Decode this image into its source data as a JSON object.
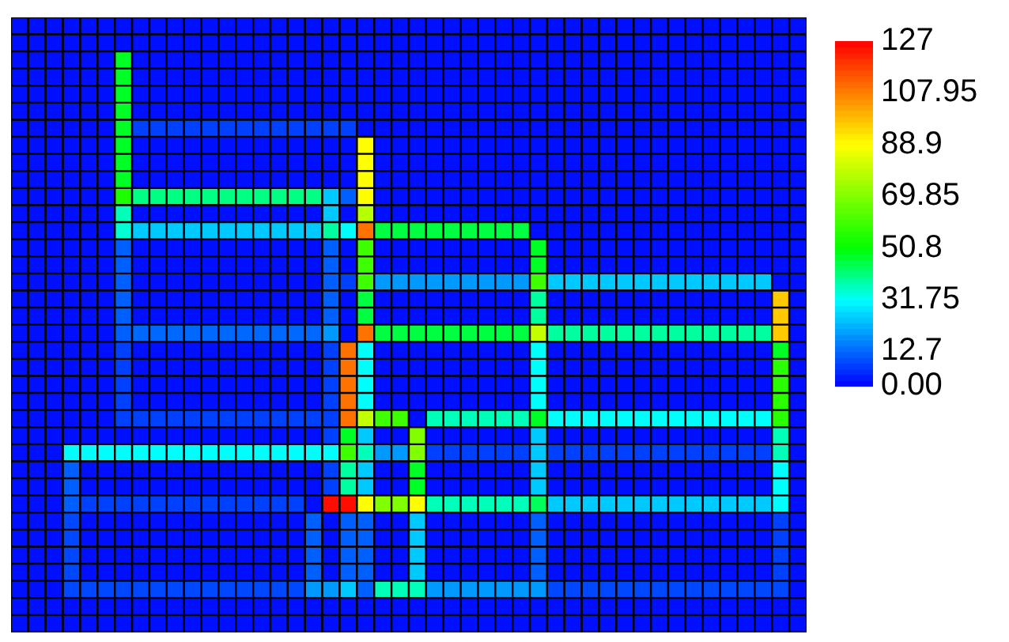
{
  "chart_data": {
    "type": "heatmap",
    "categories": [
      null,
      null,
      null,
      null,
      null,
      null,
      null,
      null,
      null,
      null,
      null,
      null,
      null,
      null,
      null,
      null,
      null,
      null,
      null,
      null,
      null,
      null,
      null,
      null,
      null,
      null,
      null,
      null,
      null,
      null,
      null,
      null,
      null,
      null,
      null,
      null,
      null,
      null,
      null,
      null,
      null,
      null,
      null,
      null,
      null,
      null
    ],
    "y_categories": [
      null,
      null,
      null,
      null,
      null,
      null,
      null,
      null,
      null,
      null,
      null,
      null,
      null,
      null,
      null,
      null,
      null,
      null,
      null,
      null,
      null,
      null,
      null,
      null,
      null,
      null,
      null,
      null,
      null,
      null,
      null,
      null,
      null,
      null,
      null,
      null
    ],
    "cells": [
      [
        2,
        2,
        2,
        2,
        2,
        2,
        2,
        2,
        2,
        2,
        2,
        2,
        2,
        2,
        2,
        2,
        2,
        2,
        2,
        2,
        2,
        2,
        2,
        2,
        2,
        2,
        2,
        2,
        2,
        2,
        2,
        2,
        2,
        2,
        2,
        2,
        2,
        2,
        2,
        2,
        2,
        2,
        2,
        2,
        2,
        2
      ],
      [
        2,
        2,
        2,
        2,
        2,
        2,
        2,
        2,
        2,
        2,
        2,
        2,
        2,
        2,
        2,
        2,
        2,
        2,
        2,
        2,
        2,
        2,
        2,
        2,
        2,
        2,
        2,
        2,
        2,
        2,
        2,
        2,
        2,
        2,
        2,
        2,
        2,
        2,
        2,
        2,
        2,
        2,
        2,
        2,
        2,
        2
      ],
      [
        2,
        2,
        2,
        2,
        2,
        2,
        48,
        2,
        2,
        2,
        2,
        2,
        2,
        2,
        2,
        2,
        2,
        2,
        2,
        2,
        2,
        2,
        2,
        2,
        2,
        2,
        2,
        2,
        2,
        2,
        2,
        2,
        2,
        2,
        2,
        2,
        2,
        2,
        2,
        2,
        2,
        2,
        2,
        2,
        2,
        2
      ],
      [
        2,
        2,
        2,
        2,
        2,
        2,
        48,
        2,
        2,
        2,
        2,
        2,
        2,
        2,
        2,
        2,
        2,
        2,
        2,
        2,
        2,
        2,
        2,
        2,
        2,
        2,
        2,
        2,
        2,
        2,
        2,
        2,
        2,
        2,
        2,
        2,
        2,
        2,
        2,
        2,
        2,
        2,
        2,
        2,
        2,
        2
      ],
      [
        2,
        2,
        2,
        2,
        2,
        2,
        48,
        2,
        2,
        2,
        2,
        2,
        2,
        2,
        2,
        2,
        2,
        2,
        2,
        2,
        2,
        2,
        2,
        2,
        2,
        2,
        2,
        2,
        2,
        2,
        2,
        2,
        2,
        2,
        2,
        2,
        2,
        2,
        2,
        2,
        2,
        2,
        2,
        2,
        2,
        2
      ],
      [
        2,
        2,
        2,
        2,
        2,
        2,
        48,
        2,
        2,
        2,
        2,
        2,
        2,
        2,
        2,
        2,
        2,
        2,
        2,
        2,
        2,
        2,
        2,
        2,
        2,
        2,
        2,
        2,
        2,
        2,
        2,
        2,
        2,
        2,
        2,
        2,
        2,
        2,
        2,
        2,
        2,
        2,
        2,
        2,
        2,
        2
      ],
      [
        2,
        2,
        2,
        2,
        2,
        2,
        48,
        8,
        8,
        8,
        8,
        8,
        8,
        8,
        8,
        8,
        8,
        8,
        8,
        8,
        2,
        2,
        2,
        2,
        2,
        2,
        2,
        2,
        2,
        2,
        2,
        2,
        2,
        2,
        2,
        2,
        2,
        2,
        2,
        2,
        2,
        2,
        2,
        2,
        2,
        2
      ],
      [
        2,
        2,
        2,
        2,
        2,
        2,
        48,
        2,
        2,
        2,
        2,
        2,
        2,
        2,
        2,
        2,
        2,
        2,
        2,
        2,
        89,
        2,
        2,
        2,
        2,
        2,
        2,
        2,
        2,
        2,
        2,
        2,
        2,
        2,
        2,
        2,
        2,
        2,
        2,
        2,
        2,
        2,
        2,
        2,
        2,
        2
      ],
      [
        2,
        2,
        2,
        2,
        2,
        2,
        48,
        2,
        2,
        2,
        2,
        2,
        2,
        2,
        2,
        2,
        2,
        2,
        2,
        2,
        89,
        2,
        2,
        2,
        2,
        2,
        2,
        2,
        2,
        2,
        2,
        2,
        2,
        2,
        2,
        2,
        2,
        2,
        2,
        2,
        2,
        2,
        2,
        2,
        2,
        2
      ],
      [
        2,
        2,
        2,
        2,
        2,
        2,
        48,
        2,
        2,
        2,
        2,
        2,
        2,
        2,
        2,
        2,
        2,
        2,
        2,
        2,
        89,
        2,
        2,
        2,
        2,
        2,
        2,
        2,
        2,
        2,
        2,
        2,
        2,
        2,
        2,
        2,
        2,
        2,
        2,
        2,
        2,
        2,
        2,
        2,
        2,
        2
      ],
      [
        2,
        2,
        2,
        2,
        2,
        2,
        55,
        41,
        41,
        41,
        41,
        41,
        41,
        41,
        41,
        41,
        41,
        41,
        25,
        12,
        89,
        2,
        2,
        2,
        2,
        2,
        2,
        2,
        2,
        2,
        2,
        2,
        2,
        2,
        2,
        2,
        2,
        2,
        2,
        2,
        2,
        2,
        2,
        2,
        2,
        2
      ],
      [
        2,
        2,
        2,
        2,
        2,
        2,
        37,
        2,
        2,
        2,
        2,
        2,
        2,
        2,
        2,
        2,
        2,
        2,
        25,
        2,
        78,
        2,
        2,
        2,
        2,
        2,
        2,
        2,
        2,
        2,
        2,
        2,
        2,
        2,
        2,
        2,
        2,
        2,
        2,
        2,
        2,
        2,
        2,
        2,
        2,
        2
      ],
      [
        2,
        2,
        2,
        2,
        2,
        2,
        35,
        25,
        25,
        25,
        25,
        25,
        25,
        25,
        25,
        25,
        25,
        25,
        39,
        32,
        110,
        46,
        46,
        46,
        46,
        46,
        46,
        46,
        46,
        46,
        2,
        2,
        2,
        2,
        2,
        2,
        2,
        2,
        2,
        2,
        2,
        2,
        2,
        2,
        2,
        2
      ],
      [
        2,
        2,
        2,
        2,
        2,
        2,
        12,
        2,
        2,
        2,
        2,
        2,
        2,
        2,
        2,
        2,
        2,
        2,
        12,
        2,
        60,
        2,
        2,
        2,
        2,
        2,
        2,
        2,
        2,
        2,
        48,
        2,
        2,
        2,
        2,
        2,
        2,
        2,
        2,
        2,
        2,
        2,
        2,
        2,
        2,
        2
      ],
      [
        2,
        2,
        2,
        2,
        2,
        2,
        12,
        2,
        2,
        2,
        2,
        2,
        2,
        2,
        2,
        2,
        2,
        2,
        12,
        2,
        60,
        2,
        2,
        2,
        2,
        2,
        2,
        2,
        2,
        2,
        48,
        2,
        2,
        2,
        2,
        2,
        2,
        2,
        2,
        2,
        2,
        2,
        2,
        2,
        2,
        2
      ],
      [
        2,
        2,
        2,
        2,
        2,
        2,
        12,
        2,
        2,
        2,
        2,
        2,
        2,
        2,
        2,
        2,
        2,
        2,
        12,
        8,
        60,
        19,
        19,
        19,
        19,
        19,
        19,
        19,
        19,
        19,
        60,
        25,
        25,
        25,
        25,
        25,
        25,
        25,
        25,
        25,
        25,
        25,
        25,
        25,
        2,
        2
      ],
      [
        2,
        2,
        2,
        2,
        2,
        2,
        12,
        2,
        2,
        2,
        2,
        2,
        2,
        2,
        2,
        2,
        2,
        2,
        12,
        2,
        46,
        2,
        2,
        2,
        2,
        2,
        2,
        2,
        2,
        2,
        39,
        2,
        2,
        2,
        2,
        2,
        2,
        2,
        2,
        2,
        2,
        2,
        2,
        2,
        97,
        2
      ],
      [
        2,
        2,
        2,
        2,
        2,
        2,
        12,
        2,
        2,
        2,
        2,
        2,
        2,
        2,
        2,
        2,
        2,
        2,
        12,
        2,
        46,
        2,
        2,
        2,
        2,
        2,
        2,
        2,
        2,
        2,
        39,
        2,
        2,
        2,
        2,
        2,
        2,
        2,
        2,
        2,
        2,
        2,
        2,
        2,
        97,
        2
      ],
      [
        2,
        2,
        2,
        2,
        2,
        2,
        12,
        13,
        13,
        13,
        13,
        13,
        13,
        13,
        13,
        13,
        13,
        13,
        19,
        2,
        110,
        46,
        46,
        46,
        46,
        46,
        46,
        46,
        46,
        46,
        80,
        39,
        39,
        39,
        39,
        39,
        39,
        39,
        39,
        39,
        39,
        39,
        39,
        39,
        97,
        2
      ],
      [
        2,
        2,
        2,
        2,
        2,
        2,
        8,
        2,
        2,
        2,
        2,
        2,
        2,
        2,
        2,
        2,
        2,
        2,
        8,
        110,
        32,
        2,
        2,
        2,
        2,
        2,
        2,
        2,
        2,
        2,
        32,
        2,
        2,
        2,
        2,
        2,
        2,
        2,
        2,
        2,
        2,
        2,
        2,
        2,
        48,
        2
      ],
      [
        2,
        2,
        2,
        2,
        2,
        2,
        8,
        2,
        2,
        2,
        2,
        2,
        2,
        2,
        2,
        2,
        2,
        2,
        8,
        110,
        32,
        2,
        2,
        2,
        2,
        2,
        2,
        2,
        2,
        2,
        32,
        2,
        2,
        2,
        2,
        2,
        2,
        2,
        2,
        2,
        2,
        2,
        2,
        2,
        57,
        2
      ],
      [
        2,
        2,
        2,
        2,
        2,
        2,
        8,
        2,
        2,
        2,
        2,
        2,
        2,
        2,
        2,
        2,
        2,
        2,
        8,
        110,
        32,
        2,
        2,
        2,
        2,
        2,
        2,
        2,
        2,
        2,
        32,
        2,
        2,
        2,
        2,
        2,
        2,
        2,
        2,
        2,
        2,
        2,
        2,
        2,
        57,
        2
      ],
      [
        2,
        2,
        2,
        2,
        2,
        2,
        8,
        2,
        2,
        2,
        2,
        2,
        2,
        2,
        2,
        2,
        2,
        2,
        8,
        110,
        32,
        2,
        2,
        2,
        2,
        2,
        2,
        2,
        2,
        2,
        32,
        2,
        2,
        2,
        2,
        2,
        2,
        2,
        2,
        2,
        2,
        2,
        2,
        2,
        57,
        2
      ],
      [
        2,
        2,
        2,
        2,
        2,
        2,
        8,
        8,
        8,
        8,
        8,
        8,
        8,
        8,
        8,
        8,
        8,
        8,
        8,
        110,
        80,
        60,
        60,
        2,
        37,
        37,
        37,
        37,
        37,
        37,
        48,
        32,
        32,
        32,
        32,
        32,
        32,
        32,
        32,
        32,
        32,
        32,
        32,
        32,
        57,
        2
      ],
      [
        2,
        2,
        2,
        2,
        2,
        2,
        2,
        2,
        2,
        2,
        2,
        2,
        2,
        2,
        2,
        2,
        2,
        2,
        8,
        48,
        25,
        2,
        2,
        70,
        2,
        2,
        2,
        2,
        2,
        2,
        25,
        2,
        2,
        2,
        2,
        2,
        2,
        2,
        2,
        2,
        2,
        2,
        2,
        2,
        37,
        2
      ],
      [
        2,
        2,
        2,
        32,
        32,
        32,
        32,
        32,
        32,
        32,
        32,
        32,
        32,
        32,
        32,
        32,
        32,
        32,
        32,
        60,
        37,
        19,
        19,
        70,
        8,
        8,
        8,
        8,
        8,
        8,
        25,
        8,
        8,
        8,
        8,
        8,
        8,
        8,
        8,
        8,
        8,
        8,
        8,
        8,
        37,
        2
      ],
      [
        2,
        2,
        2,
        12,
        2,
        2,
        2,
        2,
        2,
        2,
        2,
        2,
        2,
        2,
        2,
        2,
        2,
        2,
        8,
        39,
        25,
        2,
        2,
        48,
        2,
        2,
        2,
        2,
        2,
        2,
        25,
        2,
        2,
        2,
        2,
        2,
        2,
        2,
        2,
        2,
        2,
        2,
        2,
        2,
        32,
        2
      ],
      [
        2,
        2,
        2,
        12,
        2,
        2,
        2,
        2,
        2,
        2,
        2,
        2,
        2,
        2,
        2,
        2,
        2,
        2,
        8,
        39,
        25,
        2,
        2,
        48,
        2,
        2,
        2,
        2,
        2,
        2,
        25,
        2,
        2,
        2,
        2,
        2,
        2,
        2,
        2,
        2,
        2,
        2,
        2,
        2,
        32,
        2
      ],
      [
        2,
        2,
        2,
        12,
        8,
        8,
        8,
        8,
        8,
        8,
        8,
        8,
        8,
        8,
        8,
        8,
        8,
        2,
        125,
        125,
        89,
        70,
        70,
        89,
        37,
        37,
        37,
        37,
        37,
        37,
        44,
        25,
        25,
        25,
        25,
        25,
        25,
        25,
        25,
        25,
        25,
        25,
        25,
        25,
        32,
        2
      ],
      [
        2,
        2,
        2,
        9,
        2,
        2,
        2,
        2,
        2,
        2,
        2,
        2,
        2,
        2,
        2,
        2,
        2,
        12,
        2,
        12,
        12,
        2,
        2,
        25,
        2,
        2,
        2,
        2,
        2,
        2,
        12,
        2,
        2,
        2,
        2,
        2,
        2,
        2,
        2,
        2,
        2,
        2,
        2,
        2,
        8,
        2
      ],
      [
        2,
        2,
        2,
        9,
        2,
        2,
        2,
        2,
        2,
        2,
        2,
        2,
        2,
        2,
        2,
        2,
        2,
        12,
        2,
        12,
        12,
        2,
        2,
        25,
        2,
        2,
        2,
        2,
        2,
        2,
        12,
        2,
        2,
        2,
        2,
        2,
        2,
        2,
        2,
        2,
        2,
        2,
        2,
        2,
        8,
        2
      ],
      [
        2,
        2,
        2,
        9,
        2,
        2,
        2,
        2,
        2,
        2,
        2,
        2,
        2,
        2,
        2,
        2,
        2,
        12,
        2,
        12,
        12,
        2,
        2,
        25,
        2,
        2,
        2,
        2,
        2,
        2,
        12,
        2,
        2,
        2,
        2,
        2,
        2,
        2,
        2,
        2,
        2,
        2,
        2,
        2,
        8,
        2
      ],
      [
        2,
        2,
        2,
        9,
        2,
        2,
        2,
        2,
        2,
        2,
        2,
        2,
        2,
        2,
        2,
        2,
        2,
        12,
        2,
        12,
        12,
        2,
        2,
        25,
        2,
        2,
        2,
        2,
        2,
        2,
        12,
        2,
        2,
        2,
        2,
        2,
        2,
        2,
        2,
        2,
        2,
        2,
        2,
        2,
        8,
        2
      ],
      [
        2,
        2,
        2,
        9,
        9,
        9,
        9,
        9,
        9,
        9,
        9,
        9,
        9,
        9,
        9,
        9,
        9,
        19,
        19,
        25,
        12,
        37,
        37,
        37,
        19,
        19,
        19,
        19,
        19,
        19,
        19,
        9,
        9,
        9,
        9,
        9,
        9,
        9,
        9,
        9,
        9,
        9,
        9,
        9,
        9,
        2
      ],
      [
        2,
        2,
        2,
        2,
        2,
        2,
        2,
        2,
        2,
        2,
        2,
        2,
        2,
        2,
        2,
        2,
        2,
        2,
        2,
        2,
        2,
        2,
        2,
        2,
        2,
        2,
        2,
        2,
        2,
        2,
        2,
        2,
        2,
        2,
        2,
        2,
        2,
        2,
        2,
        2,
        2,
        2,
        2,
        2,
        2,
        2
      ],
      [
        2,
        2,
        2,
        2,
        2,
        2,
        2,
        2,
        2,
        2,
        2,
        2,
        2,
        2,
        2,
        2,
        2,
        2,
        2,
        2,
        2,
        2,
        2,
        2,
        2,
        2,
        2,
        2,
        2,
        2,
        2,
        2,
        2,
        2,
        2,
        2,
        2,
        2,
        2,
        2,
        2,
        2,
        2,
        2,
        2,
        2
      ]
    ],
    "clim": [
      0,
      127
    ],
    "cticks": [
      {
        "value": 0,
        "label": "0.00"
      },
      12.7,
      31.75,
      50.8,
      69.85,
      88.9,
      107.95,
      127
    ],
    "tick_labels": false
  }
}
